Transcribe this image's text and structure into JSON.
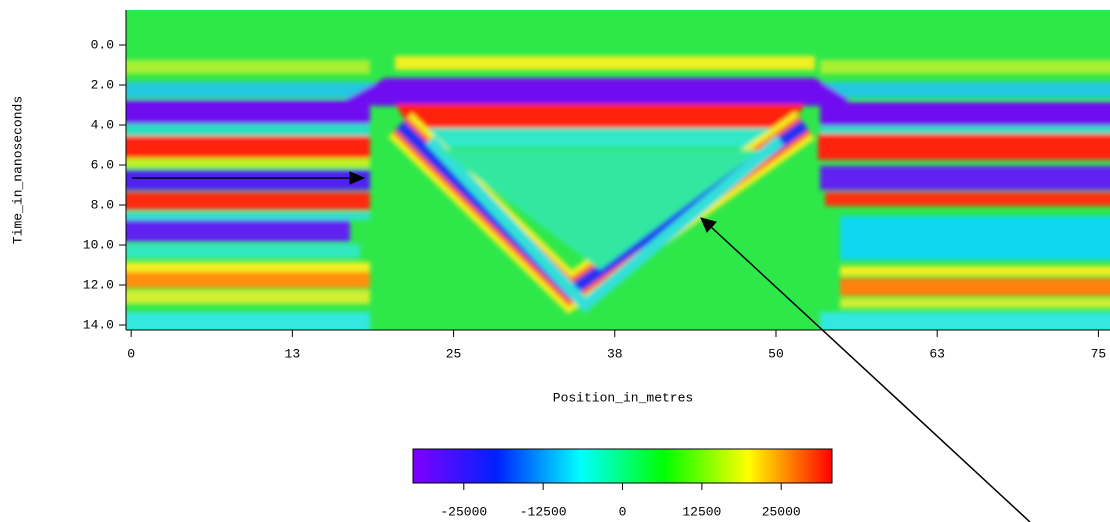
{
  "chart_data": {
    "type": "heatmap",
    "x_label": "Position_in_metres",
    "y_label": "Time_in_nanoseconds",
    "xlim": [
      -0.4,
      75.9
    ],
    "xticks": [
      0,
      {
        "value": 12.5,
        "label": "13"
      },
      25,
      {
        "value": 37.5,
        "label": "38"
      },
      50,
      {
        "value": 62.5,
        "label": "63"
      },
      75
    ],
    "ylim": [
      -1.75,
      14.25
    ],
    "y_inverted": true,
    "yticks": [
      {
        "value": 0,
        "label": "0.0"
      },
      {
        "value": 2,
        "label": "2.0"
      },
      {
        "value": 4,
        "label": "4.0"
      },
      {
        "value": 6,
        "label": "6.0"
      },
      {
        "value": 8,
        "label": "8.0"
      },
      {
        "value": 10,
        "label": "10.0"
      },
      {
        "value": 12,
        "label": "12.0"
      },
      {
        "value": 14,
        "label": "14.0"
      }
    ],
    "colorbar": {
      "clim": [
        -33000,
        33000
      ],
      "ticks": [
        -25000,
        -12500,
        0,
        12500,
        25000
      ],
      "colormap": [
        "#8000ff",
        "#0020ff",
        "#00ffff",
        "#00ff00",
        "#ffff00",
        "#ff0000"
      ]
    }
  }
}
